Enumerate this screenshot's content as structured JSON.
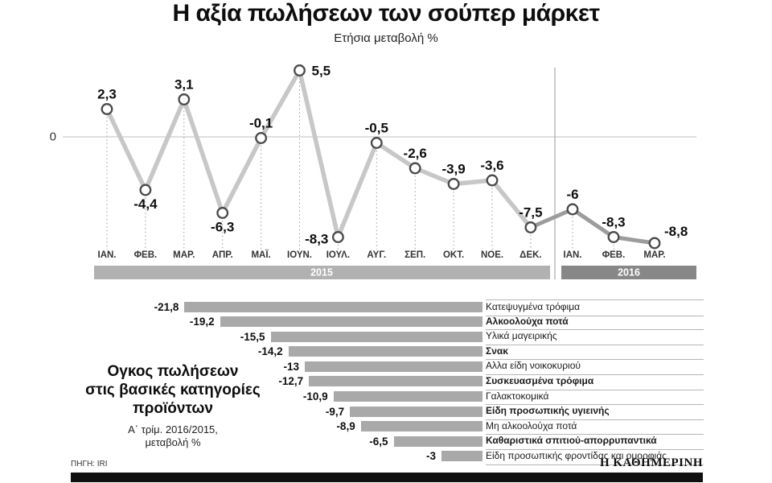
{
  "title": "Η αξία πωλήσεων των σούπερ μάρκετ",
  "subtitle": "Ετήσια μεταβολή %",
  "source": "ΠΗΓΗ: IRI",
  "logo": "Η ΚΑΘΗΜΕΡΙΝΗ",
  "side_note": {
    "line1": "Ογκος πωλήσεων",
    "line2": "στις βασικές κατηγορίες",
    "line3": "προϊόντων",
    "sub1": "Α΄ τρίμ. 2016/2015,",
    "sub2": "μεταβολή %"
  },
  "chart_data": [
    {
      "type": "line",
      "title": "Η αξία πωλήσεων των σούπερ μάρκετ",
      "subtitle": "Ετήσια μεταβολή %",
      "x": [
        "ΙΑΝ.",
        "ΦΕΒ.",
        "ΜΑΡ.",
        "ΑΠΡ.",
        "ΜΑΪ.",
        "ΙΟΥΝ.",
        "ΙΟΥΛ.",
        "ΑΥΓ.",
        "ΣΕΠ.",
        "ΟΚΤ.",
        "ΝΟΕ.",
        "ΔΕΚ.",
        "ΙΑΝ.",
        "ΦΕΒ.",
        "ΜΑΡ."
      ],
      "values": [
        2.3,
        -4.4,
        3.1,
        -6.3,
        -0.1,
        5.5,
        -8.3,
        -0.5,
        -2.6,
        -3.9,
        -3.6,
        -7.5,
        -6,
        -8.3,
        -8.8
      ],
      "labels": [
        "2,3",
        "-4,4",
        "3,1",
        "-6,3",
        "-0,1",
        "5,5",
        "-8,3",
        "-0,5",
        "-2,6",
        "-3,9",
        "-3,6",
        "-7,5",
        "-6",
        "-8,3",
        "-8,8"
      ],
      "label_pos": [
        "above",
        "below",
        "above",
        "below",
        "above",
        "right",
        "left",
        "above",
        "above",
        "above",
        "above",
        "above",
        "above",
        "above",
        "rightup"
      ],
      "year_bands": [
        {
          "label": "2015",
          "from": 0,
          "to": 11
        },
        {
          "label": "2016",
          "from": 12,
          "to": 14
        }
      ],
      "zero_label": "0",
      "ylim": [
        -10,
        7
      ],
      "grid": false,
      "colors": {
        "line_2015": "#c7c7c7",
        "line_2016": "#9c9c9c",
        "marker": "#4a4a4a",
        "band_2015": "#b1b1b1",
        "band_2016": "#878787"
      }
    },
    {
      "type": "bar",
      "orientation": "horizontal",
      "title": "Ογκος πωλήσεων στις βασικές κατηγορίες προϊόντων",
      "subtitle": "Α΄ τρίμ. 2016/2015, μεταβολή %",
      "categories": [
        "Κατεψυγμένα τρόφιμα",
        "Αλκοολούχα ποτά",
        "Υλικά μαγειρικής",
        "Σνακ",
        "Αλλα είδη νοικοκυριού",
        "Συσκευασμένα τρόφιμα",
        "Γαλακτοκομικά",
        "Είδη προσωπικής υγιεινής",
        "Μη αλκοολούχα ποτά",
        "Καθαριστικά σπιτιού-απορρυπαντικά",
        "Είδη προσωπικής φροντίδας και ομορφιάς"
      ],
      "values": [
        -21.8,
        -19.2,
        -15.5,
        -14.2,
        -13,
        -12.7,
        -10.9,
        -9.7,
        -8.9,
        -6.5,
        -3
      ],
      "labels": [
        "-21,8",
        "-19,2",
        "-15,5",
        "-14,2",
        "-13",
        "-12,7",
        "-10,9",
        "-9,7",
        "-8,9",
        "-6,5",
        "-3"
      ],
      "bold": [
        false,
        true,
        false,
        true,
        false,
        true,
        false,
        true,
        false,
        true,
        false
      ],
      "bar_color": "#a9a9a9",
      "xlim": [
        -25,
        0
      ]
    }
  ]
}
